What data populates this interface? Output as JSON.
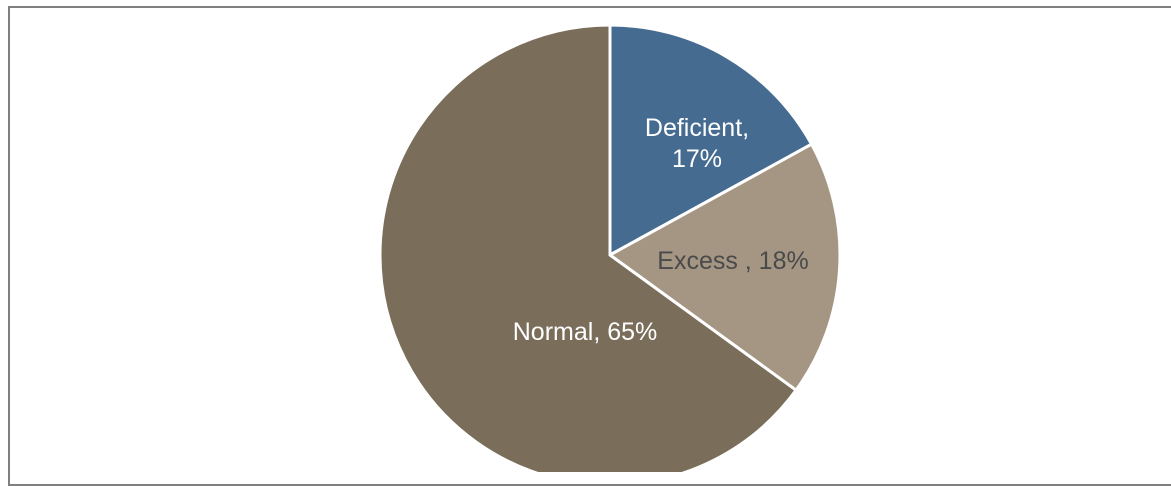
{
  "chart_data": {
    "type": "pie",
    "slices": [
      {
        "label": "Deficient",
        "percent_label": "17%",
        "value": 17,
        "color": "#456b90",
        "text_color": "#ffffff"
      },
      {
        "label": "Excess ",
        "percent_label": "18%",
        "value": 18,
        "color": "#a59684",
        "text_color": "#4a4a4a"
      },
      {
        "label": "Normal",
        "percent_label": "65%",
        "value": 65,
        "color": "#7a6e5b",
        "text_color": "#ffffff"
      }
    ],
    "legend": "none"
  }
}
